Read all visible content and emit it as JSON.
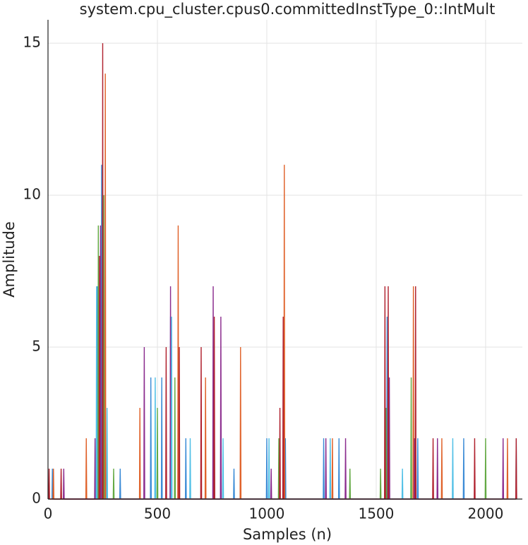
{
  "chart_data": {
    "type": "line",
    "title": "system.cpu_cluster.cpus0.committedInstType_0::IntMult",
    "x_label": "Samples (n)",
    "y_label": "Amplitude",
    "xlim": [
      0,
      2168
    ],
    "ylim": [
      0,
      15.77
    ],
    "xticks": [
      0,
      500,
      1000,
      1500,
      2000
    ],
    "yticks": [
      0,
      5,
      10,
      15
    ],
    "grid": true,
    "series": [
      {
        "color": "#3b8bd6",
        "x": [
          18,
          20,
          22,
          223,
          225,
          227,
          243,
          245,
          247,
          328,
          330,
          332,
          468,
          470,
          472,
          518,
          520,
          522,
          558,
          560,
          562,
          628,
          630,
          632,
          848,
          850,
          852,
          998,
          1000,
          1002,
          1083,
          1085,
          1087,
          1258,
          1260,
          1262,
          1328,
          1330,
          1332,
          1548,
          1550,
          1552,
          1688,
          1690,
          1692,
          1898,
          1900,
          1902
        ],
        "values": [
          0,
          1,
          0,
          0,
          7,
          0,
          0,
          11,
          0,
          0,
          1,
          0,
          0,
          4,
          0,
          0,
          4,
          0,
          0,
          6,
          0,
          0,
          2,
          0,
          0,
          1,
          0,
          0,
          2,
          0,
          0,
          2,
          0,
          0,
          2,
          0,
          0,
          2,
          0,
          0,
          6,
          0,
          0,
          2,
          0,
          0,
          2,
          0
        ]
      },
      {
        "color": "#e0622a",
        "x": [
          23,
          25,
          27,
          173,
          175,
          177,
          260,
          262,
          264,
          418,
          420,
          422,
          593,
          595,
          597,
          718,
          720,
          722,
          878,
          880,
          882,
          1078,
          1080,
          1082,
          1298,
          1300,
          1302,
          1668,
          1670,
          1672,
          1798,
          1800,
          1802,
          2098,
          2100,
          2102
        ],
        "values": [
          0,
          1,
          0,
          0,
          2,
          0,
          0,
          14,
          0,
          0,
          3,
          0,
          0,
          9,
          0,
          0,
          4,
          0,
          0,
          5,
          0,
          0,
          11,
          0,
          0,
          2,
          0,
          0,
          7,
          0,
          0,
          2,
          0,
          0,
          2,
          0
        ]
      },
      {
        "color": "#63a943",
        "x": [
          228,
          230,
          232,
          253,
          255,
          257,
          298,
          300,
          302,
          498,
          500,
          502,
          578,
          580,
          582,
          758,
          760,
          762,
          1053,
          1055,
          1057,
          1378,
          1380,
          1382,
          1518,
          1520,
          1522,
          1543,
          1545,
          1547,
          1658,
          1660,
          1662,
          1998,
          2000,
          2002
        ],
        "values": [
          0,
          9,
          0,
          0,
          10,
          0,
          0,
          1,
          0,
          0,
          3,
          0,
          0,
          4,
          0,
          0,
          3,
          0,
          0,
          2,
          0,
          0,
          1,
          0,
          0,
          1,
          0,
          0,
          3,
          0,
          0,
          4,
          0,
          0,
          2,
          0
        ]
      },
      {
        "color": "#8b2c8e",
        "x": [
          70,
          72,
          74,
          213,
          215,
          217,
          238,
          240,
          242,
          438,
          440,
          442,
          558,
          560,
          562,
          753,
          755,
          757,
          788,
          790,
          792,
          1018,
          1020,
          1022,
          1268,
          1270,
          1272,
          1358,
          1360,
          1362,
          1558,
          1560,
          1562,
          1673,
          1675,
          1677,
          1778,
          1780,
          1782,
          2078,
          2080,
          2082
        ],
        "values": [
          0,
          1,
          0,
          0,
          2,
          0,
          0,
          9,
          0,
          0,
          5,
          0,
          0,
          7,
          0,
          0,
          7,
          0,
          0,
          6,
          0,
          0,
          1,
          0,
          0,
          2,
          0,
          0,
          2,
          0,
          0,
          4,
          0,
          0,
          2,
          0,
          0,
          2,
          0,
          0,
          2,
          0
        ]
      },
      {
        "color": "#4fbfe6",
        "x": [
          220,
          222,
          224,
          268,
          270,
          272,
          488,
          490,
          492,
          563,
          565,
          567,
          648,
          650,
          652,
          798,
          800,
          802,
          1008,
          1010,
          1012,
          1288,
          1290,
          1292,
          1618,
          1620,
          1622,
          1848,
          1850,
          1852,
          2138,
          2140,
          2142
        ],
        "values": [
          0,
          7,
          0,
          0,
          3,
          0,
          0,
          4,
          0,
          0,
          6,
          0,
          0,
          2,
          0,
          0,
          2,
          0,
          0,
          2,
          0,
          0,
          2,
          0,
          0,
          1,
          0,
          0,
          2,
          0,
          0,
          2,
          0
        ]
      },
      {
        "color": "#b0212e",
        "x": [
          3,
          5,
          7,
          58,
          60,
          62,
          233,
          235,
          237,
          248,
          250,
          252,
          538,
          540,
          542,
          598,
          600,
          602,
          698,
          700,
          702,
          758,
          760,
          762,
          1058,
          1060,
          1062,
          1073,
          1075,
          1077,
          1538,
          1540,
          1542,
          1553,
          1555,
          1557,
          1678,
          1680,
          1682,
          1758,
          1760,
          1762,
          1948,
          1950,
          1952,
          2138,
          2140,
          2142
        ],
        "values": [
          0,
          1,
          0,
          0,
          1,
          0,
          0,
          8,
          0,
          0,
          15,
          0,
          0,
          5,
          0,
          0,
          5,
          0,
          0,
          5,
          0,
          0,
          6,
          0,
          0,
          3,
          0,
          0,
          6,
          0,
          0,
          7,
          0,
          0,
          7,
          0,
          0,
          7,
          0,
          0,
          2,
          0,
          0,
          2,
          0,
          0,
          2,
          0
        ]
      }
    ]
  }
}
